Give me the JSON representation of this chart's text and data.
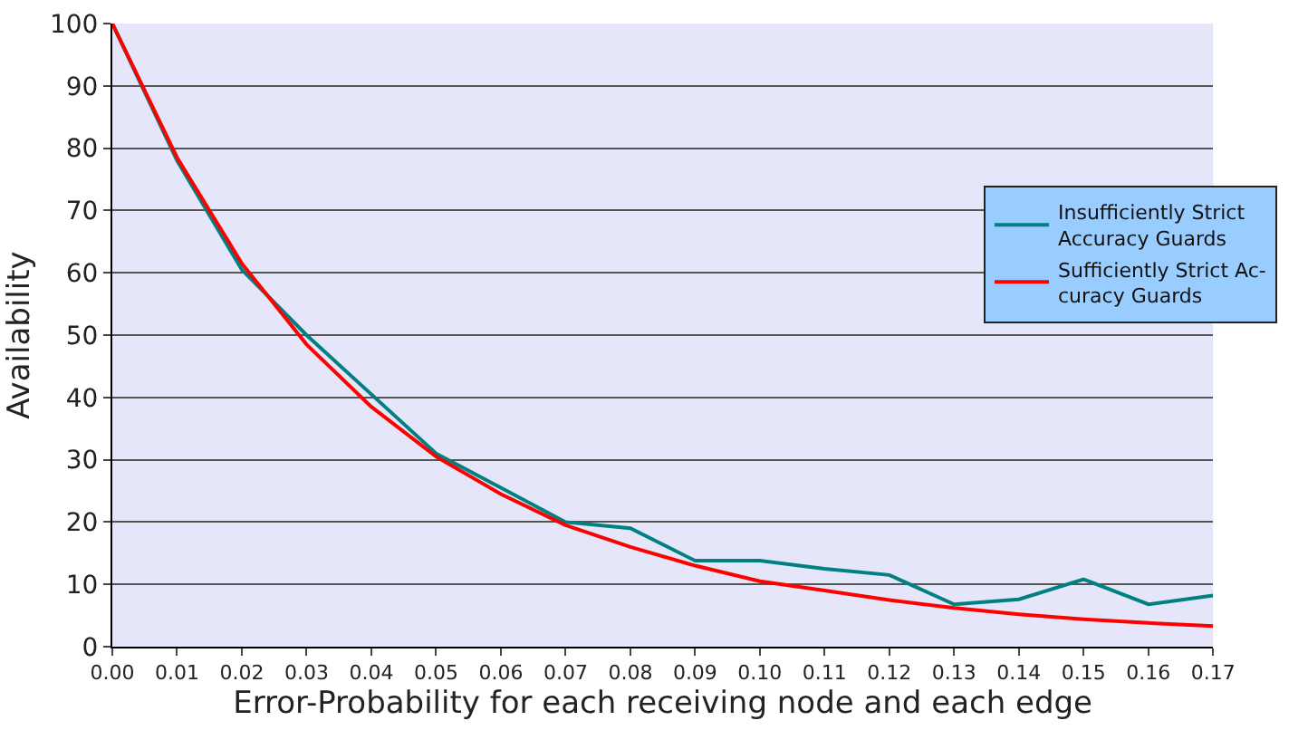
{
  "chart_data": {
    "type": "line",
    "xlabel": "Error-Probability for each receiving node and each edge",
    "ylabel": "Availability",
    "x": [
      0,
      0.01,
      0.02,
      0.03,
      0.04,
      0.05,
      0.06,
      0.07,
      0.08,
      0.09,
      0.1,
      0.11,
      0.12,
      0.13,
      0.14,
      0.15,
      0.16,
      0.17
    ],
    "series": [
      {
        "name": "Insufficiently Strict\nAccuracy Guards",
        "color": "#008080",
        "values": [
          100,
          78,
          60.5,
          50,
          40.5,
          31,
          25.5,
          20,
          19,
          13.8,
          13.8,
          12.5,
          11.5,
          6.8,
          7.6,
          10.8,
          6.8,
          8.2
        ]
      },
      {
        "name": "Sufficiently Strict Ac-\ncuracy Guards",
        "color": "#ff0000",
        "values": [
          100,
          78.5,
          61.5,
          48.5,
          38.5,
          30.5,
          24.5,
          19.5,
          16,
          13,
          10.5,
          9,
          7.5,
          6.2,
          5.2,
          4.4,
          3.8,
          3.3
        ]
      }
    ],
    "xlim": [
      0,
      0.17
    ],
    "xticks": [
      {
        "value": 0,
        "label": "0.00"
      },
      {
        "value": 0.01,
        "label": "0.01"
      },
      {
        "value": 0.02,
        "label": "0.02"
      },
      {
        "value": 0.03,
        "label": "0.03"
      },
      {
        "value": 0.04,
        "label": "0.04"
      },
      {
        "value": 0.05,
        "label": "0.05"
      },
      {
        "value": 0.06,
        "label": "0.06"
      },
      {
        "value": 0.07,
        "label": "0.07"
      },
      {
        "value": 0.08,
        "label": "0.08"
      },
      {
        "value": 0.09,
        "label": "0.09"
      },
      {
        "value": 0.1,
        "label": "0.10"
      },
      {
        "value": 0.11,
        "label": "0.11"
      },
      {
        "value": 0.12,
        "label": "0.12"
      },
      {
        "value": 0.13,
        "label": "0.13"
      },
      {
        "value": 0.14,
        "label": "0.14"
      },
      {
        "value": 0.15,
        "label": "0.15"
      },
      {
        "value": 0.16,
        "label": "0.16"
      },
      {
        "value": 0.17,
        "label": "0.17"
      }
    ],
    "ylim": [
      0,
      100
    ],
    "yticks": [
      0,
      10,
      20,
      30,
      40,
      50,
      60,
      70,
      80,
      90,
      100
    ],
    "grid": "y",
    "legend": "right",
    "marker": "none",
    "line_style": "solid"
  }
}
